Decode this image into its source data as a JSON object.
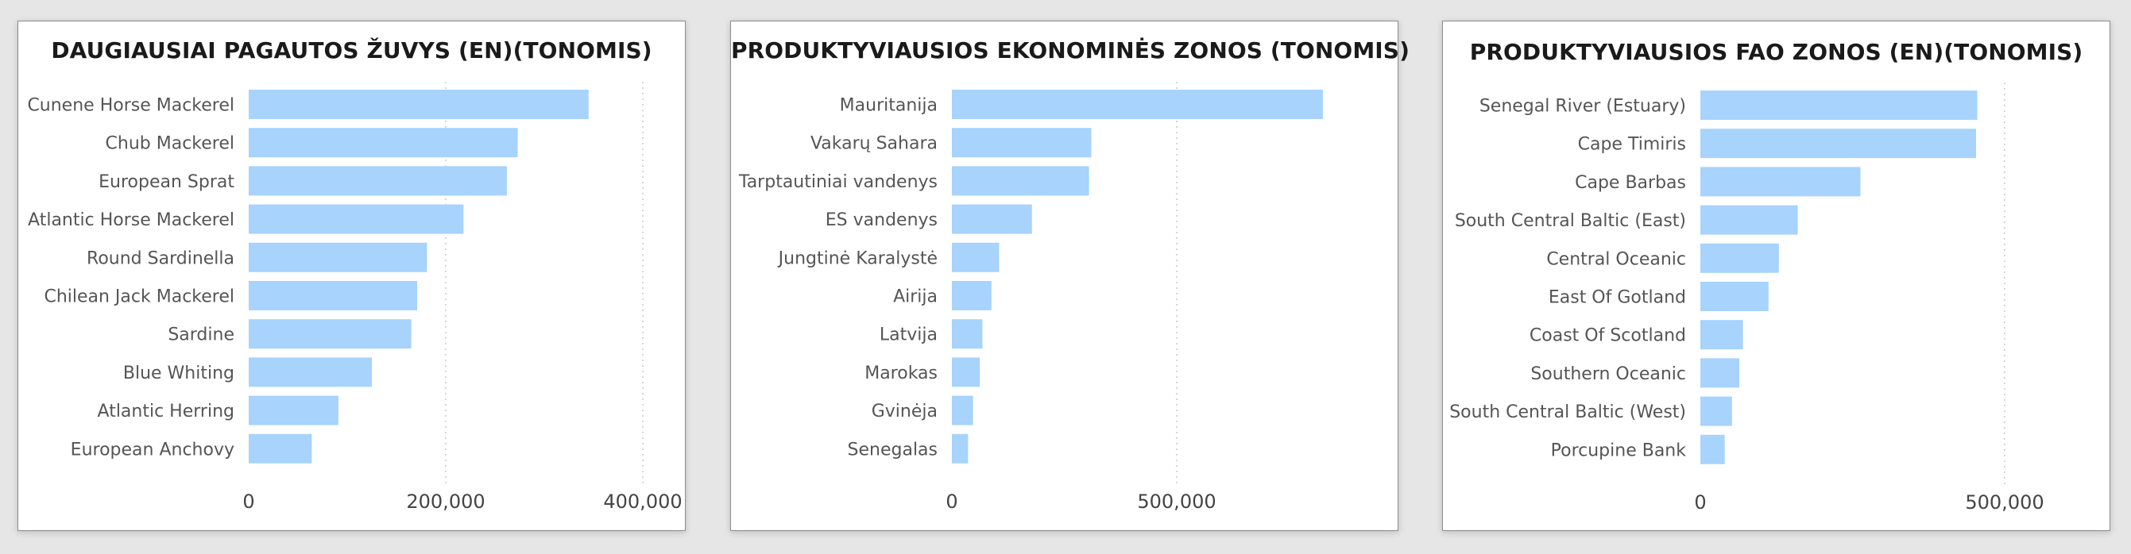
{
  "colors": {
    "bar": "#a7d3fd",
    "gridline": "#c8c8c8",
    "panel_border": "#8c8c8c",
    "background": "#e6e6e6"
  },
  "chart_data": [
    {
      "type": "bar",
      "orientation": "horizontal",
      "title": "DAUGIAUSIAI PAGAUTOS ŽUVYS (EN)(TONOMIS)",
      "categories": [
        "Cunene Horse Mackerel",
        "Chub Mackerel",
        "European Sprat",
        "Atlantic Horse Mackerel",
        "Round Sardinella",
        "Chilean Jack Mackerel",
        "Sardine",
        "Blue Whiting",
        "Atlantic Herring",
        "European Anchovy"
      ],
      "values": [
        345000,
        273000,
        262000,
        218000,
        181000,
        171000,
        165000,
        125000,
        91000,
        64000
      ],
      "xlim": [
        0,
        400000
      ],
      "xticks": [
        0,
        200000,
        400000
      ],
      "xtick_labels": [
        "0",
        "200,000",
        "400,000"
      ],
      "grid": true
    },
    {
      "type": "bar",
      "orientation": "horizontal",
      "title": "PRODUKTYVIAUSIOS EKONOMINĖS ZONOS (TONOMIS)",
      "categories": [
        "Mauritanija",
        "Vakarų Sahara",
        "Tarptautiniai vandenys",
        "ES vandenys",
        "Jungtinė Karalystė",
        "Airija",
        "Latvija",
        "Marokas",
        "Gvinėja",
        "Senegalas"
      ],
      "values": [
        825000,
        310000,
        305000,
        178000,
        105000,
        88000,
        68000,
        62000,
        47000,
        36000
      ],
      "xlim": [
        0,
        1000000
      ],
      "xticks": [
        0,
        500000
      ],
      "xtick_labels": [
        "0",
        "500,000"
      ],
      "grid": true
    },
    {
      "type": "bar",
      "orientation": "horizontal",
      "title": "PRODUKTYVIAUSIOS FAO ZONOS (EN)(TONOMIS)",
      "categories": [
        "Senegal River (Estuary)",
        "Cape Timiris",
        "Cape Barbas",
        "South Central Baltic (East)",
        "Central Oceanic",
        "East Of Gotland",
        "Coast Of Scotland",
        "Southern Oceanic",
        "South Central Baltic (West)",
        "Porcupine Bank"
      ],
      "values": [
        455000,
        453000,
        263000,
        160000,
        129000,
        112000,
        70000,
        64000,
        52000,
        40000
      ],
      "xlim": [
        0,
        1000000
      ],
      "xticks": [
        0,
        500000
      ],
      "xtick_labels": [
        "0",
        "500,000"
      ],
      "grid": true
    }
  ]
}
